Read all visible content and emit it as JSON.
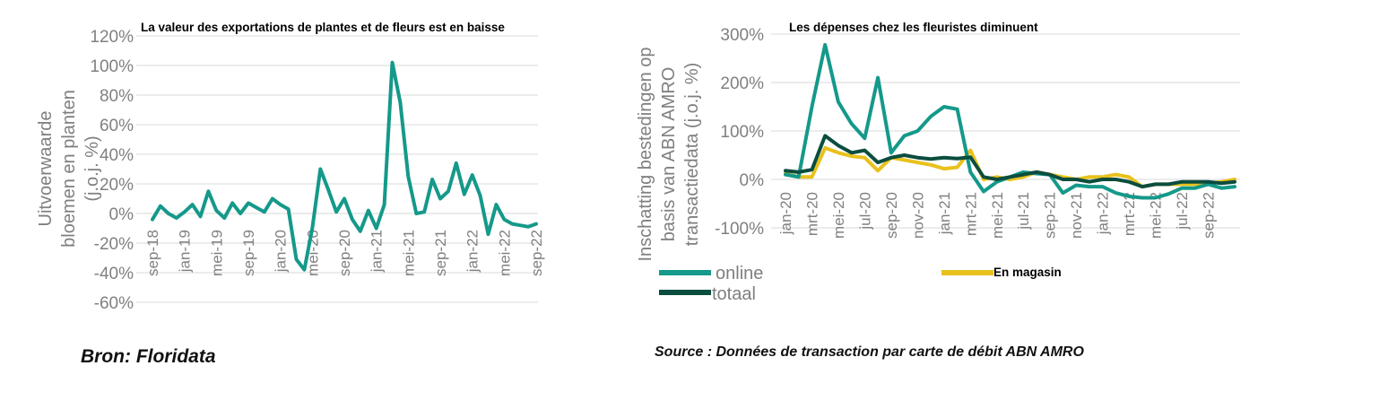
{
  "colors": {
    "online": "#14998a",
    "totaal": "#0b4d3f",
    "magasin": "#e8c11d",
    "grid": "#d9d9d9"
  },
  "chart_data": [
    {
      "type": "line",
      "title": "La valeur des exportations de plantes et de fleurs est en baisse",
      "ylabel": "Uitvoerwaarde bloemen en planten (j.o.j. %)",
      "ylim": [
        -60,
        120
      ],
      "yticks": [
        -60,
        -40,
        -20,
        0,
        20,
        40,
        60,
        80,
        100,
        120
      ],
      "ytick_labels": [
        "-60%",
        "-40%",
        "-20%",
        "0%",
        "20%",
        "40%",
        "60%",
        "80%",
        "100%",
        "120%"
      ],
      "xtick_labels": [
        "sep-18",
        "jan-19",
        "mei-19",
        "sep-19",
        "jan-20",
        "mei-20",
        "sep-20",
        "jan-21",
        "mei-21",
        "sep-21",
        "jan-22",
        "mei-22",
        "sep-22"
      ],
      "grid": true,
      "source": "Bron: Floridata",
      "series": [
        {
          "values": [
            -4,
            5,
            0,
            -3,
            1,
            6,
            -2,
            15,
            2,
            -3,
            7,
            0,
            7,
            4,
            1,
            10,
            6,
            3,
            -31,
            -38,
            -10,
            30,
            16,
            1,
            10,
            -4,
            -12,
            2,
            -10,
            6,
            102,
            75,
            25,
            0,
            1,
            23,
            10,
            15,
            34,
            13,
            26,
            12,
            -14,
            6,
            -4,
            -7,
            -8,
            -9,
            -7
          ]
        }
      ]
    },
    {
      "type": "line",
      "title": "Les dépenses chez les fleuristes diminuent",
      "ylabel": "Inschatting bestedingen op basis van ABN AMRO transactiedata (j.o.j. %)",
      "ylim": [
        -100,
        300
      ],
      "yticks": [
        -100,
        0,
        100,
        200,
        300
      ],
      "ytick_labels": [
        "-100%",
        "0%",
        "100%",
        "200%",
        "300%"
      ],
      "xtick_labels": [
        "jan-20",
        "mrt-20",
        "mei-20",
        "jul-20",
        "sep-20",
        "nov-20",
        "jan-21",
        "mrt-21",
        "mei-21",
        "jul-21",
        "sep-21",
        "nov-21",
        "jan-22",
        "mrt-22",
        "mei-22",
        "jul-22",
        "sep-22"
      ],
      "grid": true,
      "legend": "bottom",
      "source": "Source : Données de transaction par carte de débit ABN AMRO",
      "series": [
        {
          "name": "online",
          "values": [
            10,
            5,
            150,
            278,
            160,
            115,
            85,
            210,
            55,
            90,
            100,
            130,
            150,
            145,
            15,
            -25,
            -5,
            5,
            15,
            12,
            10,
            -28,
            -12,
            -15,
            -15,
            -28,
            -35,
            -38,
            -38,
            -30,
            -18,
            -18,
            -10,
            -18,
            -15
          ]
        },
        {
          "name": "totaal",
          "values": [
            18,
            15,
            20,
            90,
            70,
            55,
            60,
            35,
            45,
            50,
            45,
            42,
            45,
            43,
            46,
            5,
            0,
            5,
            10,
            15,
            10,
            0,
            0,
            -5,
            0,
            0,
            -5,
            -15,
            -10,
            -10,
            -5,
            -5,
            -5,
            -8,
            -5
          ]
        },
        {
          "name": "En magasin",
          "values": [
            12,
            5,
            5,
            65,
            55,
            48,
            45,
            18,
            45,
            40,
            35,
            30,
            22,
            25,
            60,
            0,
            5,
            0,
            5,
            15,
            10,
            5,
            0,
            5,
            5,
            10,
            5,
            -15,
            -10,
            -10,
            -10,
            -10,
            -8,
            -5,
            0
          ]
        }
      ]
    }
  ]
}
